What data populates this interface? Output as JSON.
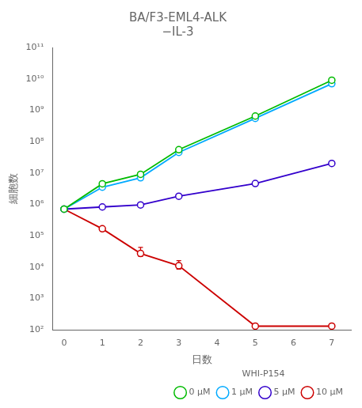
{
  "chart_data": {
    "type": "line",
    "title": "BA/F3-EML4-ALK\n−IL-3",
    "x_label": "日数",
    "y_label": "細胞数",
    "log": "y",
    "grid": false,
    "legend": "lower right",
    "legend_title": "WHI-P154",
    "marker": "circle",
    "xlim": [
      -0.3,
      7.5
    ],
    "xticks": [
      0,
      1,
      2,
      3,
      4,
      5,
      6,
      7
    ],
    "ylim": [
      100,
      100000000000
    ],
    "yticks": [
      {
        "value": 100,
        "label": "10²"
      },
      {
        "value": 1000,
        "label": "10³"
      },
      {
        "value": 10000,
        "label": "10⁴"
      },
      {
        "value": 100000,
        "label": "10⁵"
      },
      {
        "value": 1000000,
        "label": "10⁶"
      },
      {
        "value": 10000000,
        "label": "10⁷"
      },
      {
        "value": 100000000,
        "label": "10⁸"
      },
      {
        "value": 1000000000,
        "label": "10⁹"
      },
      {
        "value": 10000000000,
        "label": "10¹⁰"
      },
      {
        "value": 100000000000,
        "label": "10¹¹"
      }
    ],
    "x": [
      0,
      1,
      2,
      3,
      5,
      7
    ],
    "series": [
      {
        "name": "0 μM",
        "color": "#00bb00",
        "values": [
          700000,
          4500000,
          9000000,
          55000000,
          650000000,
          9000000000
        ],
        "yerr_lo": [
          80000,
          200000,
          400000,
          3000000,
          60000000,
          400000000
        ],
        "yerr_hi": [
          80000,
          200000,
          400000,
          3000000,
          60000000,
          400000000
        ]
      },
      {
        "name": "1 μM",
        "color": "#00aaff",
        "values": [
          700000,
          3500000,
          7000000,
          45000000,
          550000000,
          7000000000
        ],
        "yerr_lo": [
          80000,
          200000,
          400000,
          3000000,
          50000000,
          350000000
        ],
        "yerr_hi": [
          80000,
          200000,
          400000,
          3000000,
          50000000,
          350000000
        ]
      },
      {
        "name": "5 μM",
        "color": "#3300cc",
        "values": [
          700000,
          820000,
          950000,
          1800000,
          4600000,
          20000000
        ],
        "yerr_lo": [
          60000,
          50000,
          60000,
          120000,
          600000,
          2000000
        ],
        "yerr_hi": [
          60000,
          50000,
          60000,
          120000,
          600000,
          2000000
        ]
      },
      {
        "name": "10 μM",
        "color": "#cc0000",
        "values": [
          700000,
          165000,
          27000,
          11000,
          130,
          130
        ],
        "yerr_lo": [
          60000,
          25000,
          5000,
          2500,
          10,
          10
        ],
        "yerr_hi": [
          60000,
          25000,
          15000,
          5000,
          10,
          10
        ]
      }
    ]
  }
}
